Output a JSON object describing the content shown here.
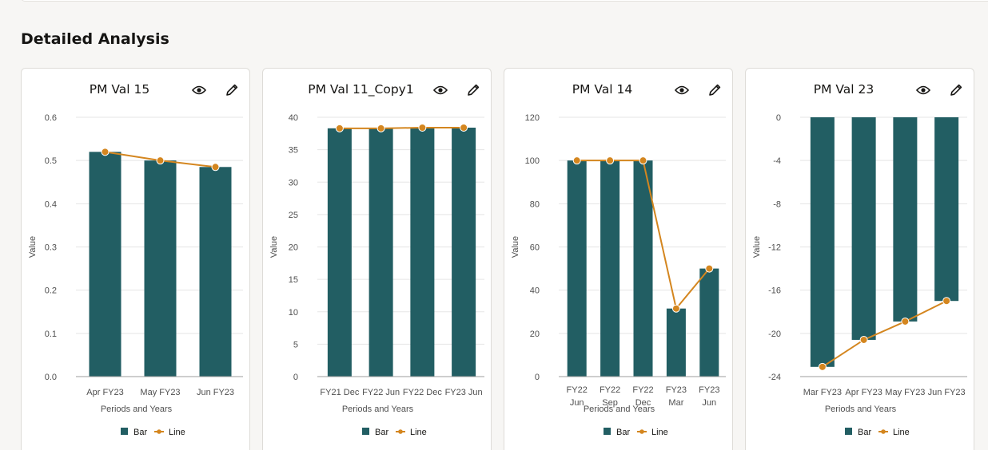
{
  "section_title": "Detailed Analysis",
  "colors": {
    "bar": "#225e63",
    "line": "#d4861f",
    "grid": "#e5e5e5"
  },
  "icons": {
    "view": "eye-icon",
    "edit": "pencil-icon"
  },
  "chart_data": [
    {
      "type": "bar",
      "title": "PM Val 15",
      "xlabel": "Periods and Years",
      "ylabel": "Value",
      "categories": [
        "Apr FY23",
        "May FY23",
        "Jun FY23"
      ],
      "ylim": [
        0,
        0.6
      ],
      "yticks": [
        "0.6",
        "0.5",
        "0.4",
        "0.3",
        "0.2",
        "0.1",
        "0.0"
      ],
      "series": [
        {
          "name": "Bar",
          "type": "bar",
          "values": [
            0.52,
            0.5,
            0.485
          ]
        },
        {
          "name": "Line",
          "type": "line",
          "values": [
            0.52,
            0.5,
            0.485
          ]
        }
      ],
      "legend": [
        "Bar",
        "Line"
      ],
      "legend_position": "bottom",
      "grid": true
    },
    {
      "type": "bar",
      "title": "PM Val 11_Copy1",
      "xlabel": "Periods and Years",
      "ylabel": "Value",
      "categories": [
        "FY21 Dec",
        "FY22 Jun",
        "FY22 Dec",
        "FY23 Jun"
      ],
      "ylim": [
        0,
        40
      ],
      "yticks": [
        "40",
        "35",
        "30",
        "25",
        "20",
        "15",
        "10",
        "5",
        "0"
      ],
      "series": [
        {
          "name": "Bar",
          "type": "bar",
          "values": [
            38.3,
            38.3,
            38.4,
            38.4
          ]
        },
        {
          "name": "Line",
          "type": "line",
          "values": [
            38.3,
            38.3,
            38.4,
            38.4
          ]
        }
      ],
      "legend": [
        "Bar",
        "Line"
      ],
      "legend_position": "bottom",
      "grid": true
    },
    {
      "type": "bar",
      "title": "PM Val 14",
      "xlabel": "Periods and Years",
      "ylabel": "Value",
      "categories": [
        "FY22\nJun",
        "FY22\nSep",
        "FY22\nDec",
        "FY23\nMar",
        "FY23\nJun"
      ],
      "ylim": [
        0,
        120
      ],
      "yticks": [
        "120",
        "100",
        "80",
        "60",
        "40",
        "20",
        "0"
      ],
      "series": [
        {
          "name": "Bar",
          "type": "bar",
          "values": [
            100,
            100,
            100,
            31.5,
            50
          ]
        },
        {
          "name": "Line",
          "type": "line",
          "values": [
            100,
            100,
            100,
            31.5,
            50
          ]
        }
      ],
      "legend": [
        "Bar",
        "Line"
      ],
      "legend_position": "bottom",
      "grid": true
    },
    {
      "type": "bar",
      "title": "PM Val 23",
      "xlabel": "Periods and Years",
      "ylabel": "Value",
      "categories": [
        "Mar FY23",
        "Apr FY23",
        "May FY23",
        "Jun FY23"
      ],
      "ylim": [
        -24,
        0
      ],
      "yticks": [
        "0",
        "-4",
        "-8",
        "-12",
        "-16",
        "-20",
        "-24"
      ],
      "series": [
        {
          "name": "Bar",
          "type": "bar",
          "values": [
            -23.1,
            -20.6,
            -18.9,
            -17
          ]
        },
        {
          "name": "Line",
          "type": "line",
          "values": [
            -23.1,
            -20.6,
            -18.9,
            -17
          ]
        }
      ],
      "legend": [
        "Bar",
        "Line"
      ],
      "legend_position": "bottom",
      "grid": true
    }
  ]
}
